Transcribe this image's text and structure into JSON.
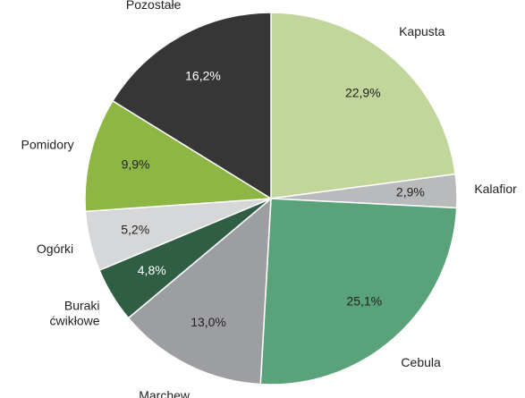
{
  "chart_data": {
    "type": "pie",
    "categories": [
      "Kapusta",
      "Kalafior",
      "Cebula",
      "Marchew",
      "Buraki ćwikłowe",
      "Ogórki",
      "Pomidory",
      "Pozostałe"
    ],
    "values": [
      22.9,
      2.9,
      25.1,
      13.0,
      4.8,
      5.2,
      9.9,
      16.2
    ],
    "value_labels": [
      "22,9%",
      "2,9%",
      "25,1%",
      "13,0%",
      "4,8%",
      "5,2%",
      "9,9%",
      "16,2%"
    ],
    "colors": [
      "#c2d59a",
      "#b8babc",
      "#5aa27a",
      "#9d9ea1",
      "#2f5e45",
      "#d6d7d8",
      "#8db644",
      "#363636"
    ]
  }
}
